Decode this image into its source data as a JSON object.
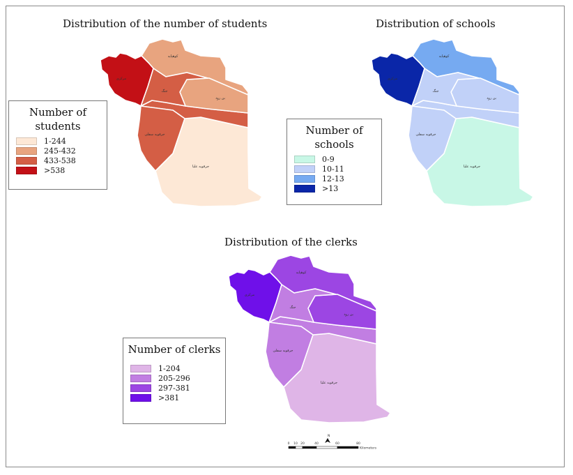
{
  "maps": [
    {
      "id": "students",
      "title": "Distribution of the number of students",
      "legend": {
        "title_line1": "Number of",
        "title_line2": "students",
        "classes": [
          {
            "label": "1-244",
            "color": "#fde8d6"
          },
          {
            "label": "245-432",
            "color": "#e8a47f"
          },
          {
            "label": "433-538",
            "color": "#d45e45"
          },
          {
            "label": ">538",
            "color": "#c31016"
          }
        ]
      },
      "region_classes": {
        "northwest": 3,
        "north": 1,
        "center": 2,
        "east": 1,
        "middle-band": 2,
        "southwest": 2,
        "south": 0
      }
    },
    {
      "id": "schools",
      "title": "Distribution of schools",
      "legend": {
        "title_line1": "Number of",
        "title_line2": "schools",
        "classes": [
          {
            "label": "0-9",
            "color": "#c8f7e6"
          },
          {
            "label": "10-11",
            "color": "#c1d1f8"
          },
          {
            "label": "12-13",
            "color": "#76aaf1"
          },
          {
            "label": ">13",
            "color": "#0a26a8"
          }
        ]
      },
      "region_classes": {
        "northwest": 3,
        "north": 2,
        "center": 1,
        "east": 1,
        "middle-band": 1,
        "southwest": 1,
        "south": 0
      }
    },
    {
      "id": "clerks",
      "title": "Distribution of the clerks",
      "legend": {
        "title_line1": "Number of clerks",
        "title_line2": "",
        "classes": [
          {
            "label": "1-204",
            "color": "#dfb5e7"
          },
          {
            "label": "205-296",
            "color": "#c17ee2"
          },
          {
            "label": "297-381",
            "color": "#9c46e3"
          },
          {
            "label": ">381",
            "color": "#6f10e9"
          }
        ]
      },
      "region_classes": {
        "northwest": 3,
        "north": 2,
        "center": 1,
        "east": 2,
        "middle-band": 1,
        "southwest": 1,
        "south": 0
      }
    }
  ],
  "region_labels": {
    "northwest": "مرکزی",
    "north": "کوهپایه",
    "center": "جنگ",
    "east": "بن رود",
    "southwest": "جرقویه سفلی",
    "south": "جرقویه علیا"
  },
  "scale_bar": {
    "ticks": [
      "0",
      "10",
      "20",
      "40",
      "60",
      "80"
    ],
    "unit": "Kilometers",
    "north_label": "N"
  }
}
